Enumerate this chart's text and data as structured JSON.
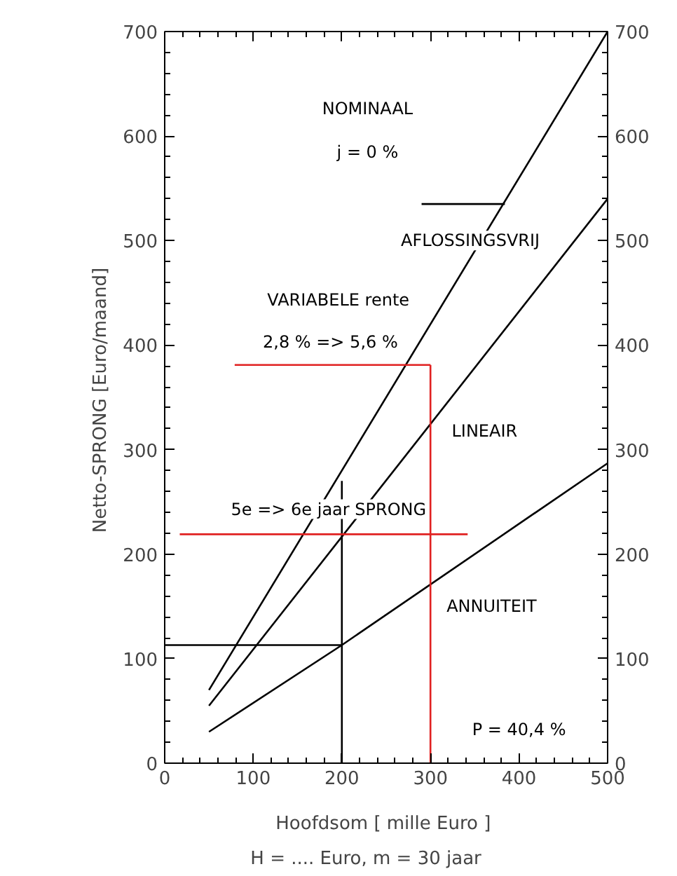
{
  "chart_data": {
    "type": "line",
    "xlabel": "Hoofdsom  [ mille Euro ]",
    "ylabel": "Netto-SPRONG  [Euro/maand]",
    "xlim": [
      0,
      500
    ],
    "xticks": [
      0,
      100,
      200,
      300,
      400,
      500
    ],
    "ylim": [
      0,
      700
    ],
    "yticks": [
      0,
      100,
      200,
      300,
      400,
      500,
      600,
      700
    ],
    "y2lim": [
      0,
      700
    ],
    "y2ticks": [
      0,
      100,
      200,
      300,
      400,
      500,
      600,
      700
    ],
    "grid": false,
    "marker": "none",
    "line_style": "solid",
    "series": [
      {
        "color": "#000000",
        "x": [
          50,
          500
        ],
        "values": [
          70,
          700
        ]
      },
      {
        "color": "#000000",
        "x": [
          50,
          500
        ],
        "values": [
          55,
          540
        ]
      },
      {
        "color": "#000000",
        "x": [
          50,
          200,
          500
        ],
        "values": [
          30,
          113,
          287
        ]
      },
      {
        "color": "#000000",
        "x": [
          200,
          200
        ],
        "values": [
          0,
          270
        ]
      },
      {
        "color": "#000000",
        "x": [
          0,
          200
        ],
        "values": [
          113,
          113
        ]
      },
      {
        "color": "#000000",
        "x": [
          290,
          384
        ],
        "values": [
          535,
          535
        ]
      },
      {
        "color": "#e02020",
        "x": [
          300,
          300
        ],
        "values": [
          0,
          381
        ]
      },
      {
        "color": "#e02020",
        "x": [
          79,
          300
        ],
        "values": [
          381,
          381
        ]
      },
      {
        "color": "#e02020",
        "x": [
          17,
          342
        ],
        "values": [
          219,
          219
        ]
      }
    ],
    "annotations": [
      "NOMINAAL",
      "j = 0 %",
      "AFLOSSINGSVRIJ",
      "VARIABELE    rente",
      "2,8 % => 5,6 %",
      "LINEAIR",
      "5e => 6e jaar SPRONG",
      "ANNUITEIT",
      "P = 40,4 %",
      "H = .... Euro,        m = 30 jaar"
    ]
  }
}
